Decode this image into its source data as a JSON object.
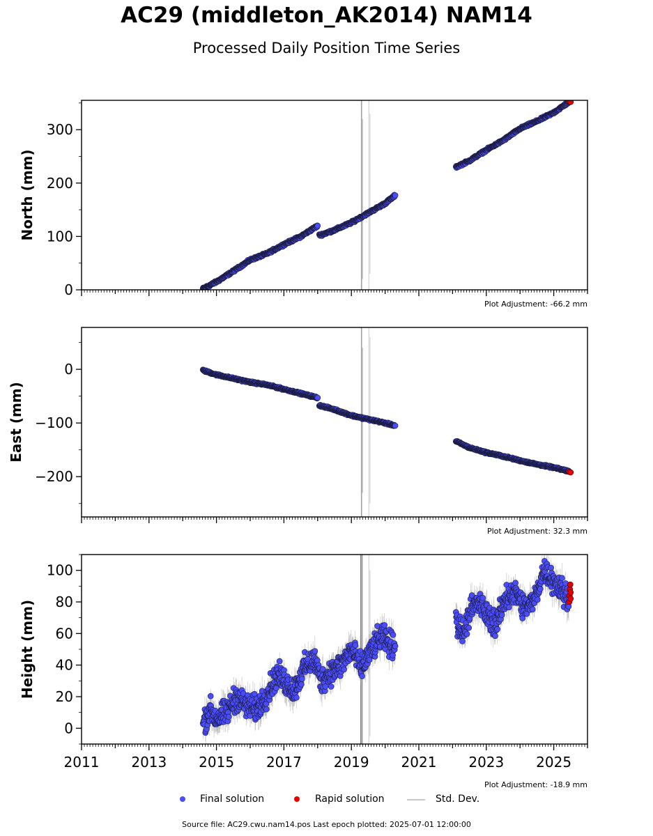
{
  "title": "AC29 (middleton_AK2014) NAM14",
  "subtitle": "Processed Daily Position Time Series",
  "colors": {
    "final": "#4b4dfb",
    "rapid": "#e80000",
    "std": "#b4b4b4",
    "edge": "#1a1a3a"
  },
  "legend": {
    "final": "Final solution",
    "rapid": "Rapid solution",
    "std": "Std. Dev."
  },
  "footer": "Source file: AC29.cwu.nam14.pos  Last epoch plotted: 2025-07-01 12:00:00",
  "chart_data": [
    {
      "type": "scatter",
      "ylabel": "North (mm)",
      "adjustment": "Plot Adjustment: -66.2 mm",
      "xlim": [
        2011,
        2026
      ],
      "ylim": [
        0,
        355
      ],
      "yticks": [
        0,
        100,
        200,
        300
      ],
      "yticklabels": [
        "0",
        "100",
        "200",
        "300"
      ],
      "show_xticklabels": false,
      "series": [
        {
          "x": [
            2014.6,
            2015.0,
            2015.5,
            2016.0,
            2016.5,
            2017.0,
            2017.5,
            2018.0
          ],
          "y": [
            2,
            15,
            35,
            56,
            68,
            85,
            100,
            120
          ],
          "noise": 1.5
        },
        {
          "x": [
            2018.05,
            2018.5,
            2019.0,
            2019.5,
            2020.0,
            2020.3
          ],
          "y": [
            102,
            112,
            126,
            144,
            162,
            177
          ],
          "noise": 1.5
        },
        {
          "x": [
            2022.1,
            2022.5,
            2023.0,
            2023.5,
            2024.0,
            2024.5,
            2025.0,
            2025.45
          ],
          "y": [
            230,
            242,
            262,
            280,
            302,
            316,
            332,
            352
          ],
          "noise": 1.5
        }
      ],
      "rapid": {
        "x": [
          2025.46,
          2025.5
        ],
        "y": [
          353,
          352
        ]
      },
      "stddev": [
        {
          "x": 2019.3,
          "low": 0,
          "high": 355,
          "color": "#a0a0a0"
        },
        {
          "x": 2019.33,
          "low": 20,
          "high": 320,
          "color": "#c8c8c8"
        },
        {
          "x": 2019.52,
          "low": 0,
          "high": 355,
          "color": "#dcdcdc"
        },
        {
          "x": 2019.55,
          "low": 30,
          "high": 330,
          "color": "#dcdcdc"
        }
      ]
    },
    {
      "type": "scatter",
      "ylabel": "East (mm)",
      "adjustment": "Plot Adjustment: 32.3 mm",
      "xlim": [
        2011,
        2026
      ],
      "ylim": [
        -275,
        78
      ],
      "yticks": [
        -200,
        -100,
        0
      ],
      "yticklabels": [
        "−200",
        "−100",
        "0"
      ],
      "show_xticklabels": false,
      "series": [
        {
          "x": [
            2014.6,
            2015.0,
            2015.5,
            2016.0,
            2016.5,
            2017.0,
            2017.5,
            2018.0
          ],
          "y": [
            -2,
            -10,
            -17,
            -24,
            -29,
            -37,
            -45,
            -53
          ],
          "noise": 1.2
        },
        {
          "x": [
            2018.05,
            2018.5,
            2019.0,
            2019.5,
            2020.0,
            2020.3
          ],
          "y": [
            -67,
            -75,
            -86,
            -93,
            -100,
            -105
          ],
          "noise": 1.2
        },
        {
          "x": [
            2022.1,
            2022.5,
            2023.0,
            2023.5,
            2024.0,
            2024.5,
            2025.0,
            2025.45
          ],
          "y": [
            -134,
            -146,
            -155,
            -162,
            -170,
            -177,
            -183,
            -190
          ],
          "noise": 1.2
        }
      ],
      "rapid": {
        "x": [
          2025.46,
          2025.5
        ],
        "y": [
          -191,
          -192
        ]
      },
      "stddev": [
        {
          "x": 2019.3,
          "low": -275,
          "high": 78,
          "color": "#a0a0a0"
        },
        {
          "x": 2019.33,
          "low": -230,
          "high": 40,
          "color": "#c8c8c8"
        },
        {
          "x": 2019.52,
          "low": -275,
          "high": 78,
          "color": "#dcdcdc"
        },
        {
          "x": 2019.55,
          "low": -250,
          "high": 60,
          "color": "#dcdcdc"
        }
      ]
    },
    {
      "type": "scatter",
      "ylabel": "Height (mm)",
      "adjustment": "Plot Adjustment: -18.9 mm",
      "xlim": [
        2011,
        2026
      ],
      "ylim": [
        -10,
        110
      ],
      "yticks": [
        0,
        20,
        40,
        60,
        80,
        100
      ],
      "yticklabels": [
        "0",
        "20",
        "40",
        "60",
        "80",
        "100"
      ],
      "xticks": [
        2011,
        2013,
        2015,
        2017,
        2019,
        2021,
        2023,
        2025
      ],
      "xticklabels": [
        "2011",
        "2013",
        "2015",
        "2017",
        "2019",
        "2021",
        "2023",
        "2025"
      ],
      "show_xticklabels": true,
      "series": [
        {
          "x": [
            2014.6,
            2014.8,
            2015.0,
            2015.3,
            2015.6,
            2015.9,
            2016.2,
            2016.5,
            2016.8,
            2017.0,
            2017.3,
            2017.6,
            2017.9,
            2018.1,
            2018.4,
            2018.7,
            2019.0,
            2019.3,
            2019.6,
            2019.9,
            2020.1,
            2020.3
          ],
          "y": [
            3,
            12,
            6,
            10,
            20,
            14,
            12,
            22,
            34,
            30,
            24,
            38,
            44,
            30,
            36,
            40,
            50,
            38,
            50,
            58,
            54,
            52
          ],
          "noise": 6
        },
        {
          "x": [
            2022.1,
            2022.3,
            2022.5,
            2022.8,
            2023.0,
            2023.3,
            2023.6,
            2023.9,
            2024.1,
            2024.4,
            2024.7,
            2024.9,
            2025.2,
            2025.45
          ],
          "y": [
            70,
            60,
            74,
            80,
            72,
            66,
            84,
            86,
            76,
            80,
            100,
            96,
            88,
            82
          ],
          "noise": 6
        }
      ],
      "rapid": {
        "x": [
          2025.46,
          2025.47,
          2025.48,
          2025.49,
          2025.5,
          2025.5
        ],
        "y": [
          80,
          84,
          88,
          91,
          86,
          82
        ]
      },
      "stddev": [
        {
          "x": 2019.28,
          "low": -10,
          "high": 110,
          "color": "#808080"
        },
        {
          "x": 2019.32,
          "low": -10,
          "high": 110,
          "color": "#a0a0a0"
        },
        {
          "x": 2019.52,
          "low": -10,
          "high": 110,
          "color": "#dcdcdc"
        },
        {
          "x": 2019.55,
          "low": -5,
          "high": 100,
          "color": "#dcdcdc"
        }
      ]
    }
  ]
}
